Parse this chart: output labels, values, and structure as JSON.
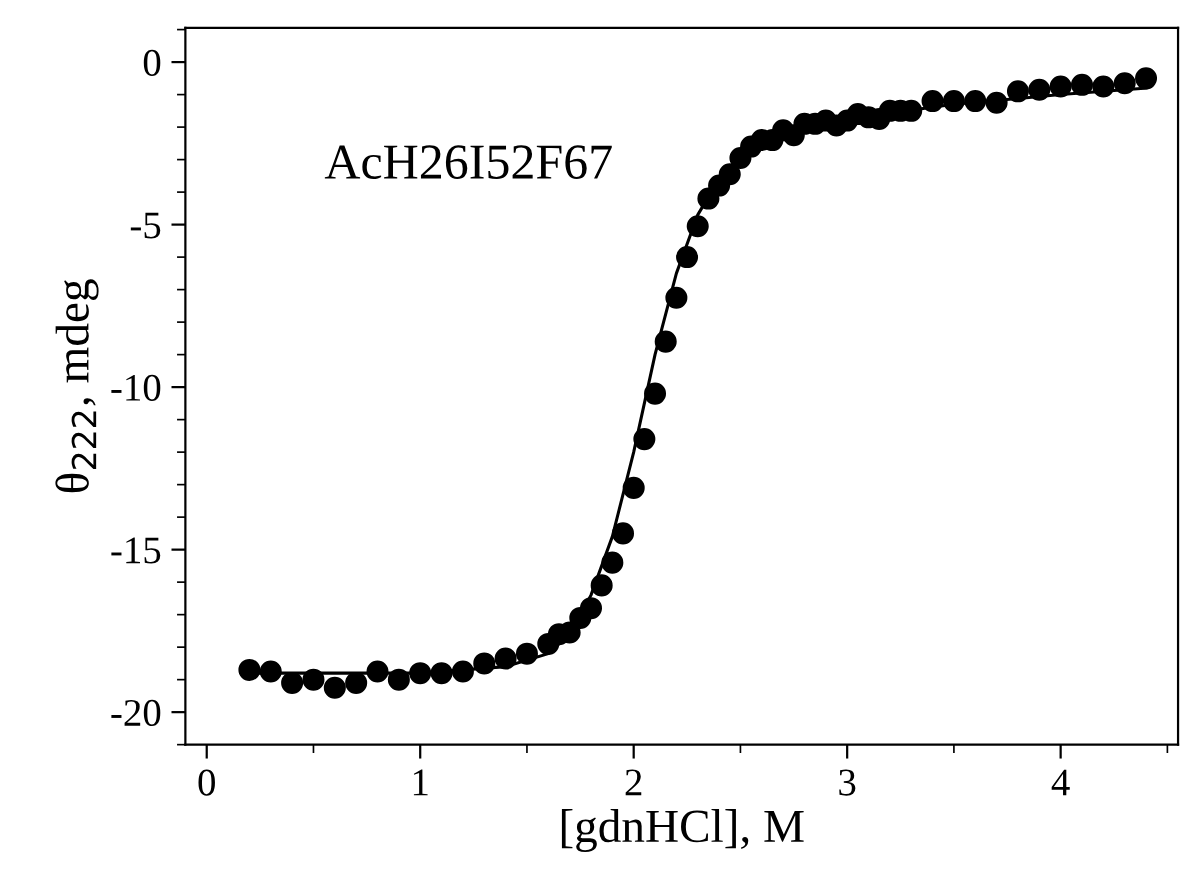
{
  "chart_data": {
    "type": "scatter",
    "xlabel": "[gdnHCl], M",
    "ylabel": "θ$_{222}$, mdeg",
    "annotations": [
      "AcH26I52F67"
    ],
    "xlim": [
      -0.1,
      4.55
    ],
    "ylim": [
      -21,
      1.05
    ],
    "xticks": [
      0,
      1,
      2,
      3,
      4
    ],
    "yticks": [
      0,
      -5,
      -10,
      -15,
      -20
    ],
    "grid": false,
    "legend": false,
    "series": [
      {
        "marker": "circle",
        "color": "#000000",
        "x": [
          0.2,
          0.3,
          0.4,
          0.5,
          0.6,
          0.7,
          0.8,
          0.9,
          1.0,
          1.1,
          1.2,
          1.3,
          1.4,
          1.5,
          1.6,
          1.65,
          1.7,
          1.75,
          1.8,
          1.85,
          1.9,
          1.95,
          2.0,
          2.05,
          2.1,
          2.15,
          2.2,
          2.25,
          2.3,
          2.35,
          2.4,
          2.45,
          2.5,
          2.55,
          2.6,
          2.65,
          2.7,
          2.75,
          2.8,
          2.85,
          2.9,
          2.95,
          3.0,
          3.05,
          3.1,
          3.15,
          3.2,
          3.25,
          3.3,
          3.4,
          3.5,
          3.6,
          3.7,
          3.8,
          3.9,
          4.0,
          4.1,
          4.2,
          4.3,
          4.4
        ],
        "values": [
          -18.7,
          -18.75,
          -19.1,
          -19.0,
          -19.25,
          -19.1,
          -18.75,
          -19.0,
          -18.8,
          -18.8,
          -18.75,
          -18.5,
          -18.35,
          -18.2,
          -17.9,
          -17.6,
          -17.55,
          -17.1,
          -16.8,
          -16.1,
          -15.4,
          -14.5,
          -13.1,
          -11.6,
          -10.2,
          -8.6,
          -7.25,
          -6.0,
          -5.05,
          -4.2,
          -3.8,
          -3.45,
          -2.95,
          -2.6,
          -2.4,
          -2.4,
          -2.1,
          -2.25,
          -1.9,
          -1.9,
          -1.8,
          -1.95,
          -1.8,
          -1.6,
          -1.7,
          -1.75,
          -1.5,
          -1.5,
          -1.5,
          -1.2,
          -1.2,
          -1.2,
          -1.25,
          -0.9,
          -0.85,
          -0.75,
          -0.7,
          -0.75,
          -0.65,
          -0.5
        ]
      },
      {
        "type": "line",
        "line_style": "solid",
        "color": "#000000",
        "x": [
          0.2,
          1.0,
          1.4,
          1.6,
          1.7,
          1.8,
          1.9,
          2.0,
          2.1,
          2.2,
          2.3,
          2.4,
          2.5,
          2.7,
          3.0,
          3.5,
          4.0,
          4.4
        ],
        "values": [
          -18.8,
          -18.8,
          -18.6,
          -18.2,
          -17.6,
          -16.4,
          -14.6,
          -12.0,
          -9.0,
          -6.5,
          -4.7,
          -3.6,
          -2.9,
          -2.2,
          -1.75,
          -1.3,
          -1.0,
          -0.8
        ]
      }
    ]
  }
}
